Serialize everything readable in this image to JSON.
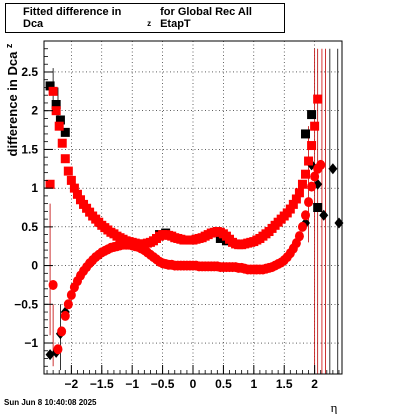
{
  "title": {
    "main": "Fitted difference in Dca",
    "subscript": "z",
    "suffix": "for Global Rec All EtapT"
  },
  "footer": {
    "timestamp": "Sun Jun  8 10:40:08 2025"
  },
  "colors": {
    "series_black": "#000000",
    "series_red": "#ff0000",
    "grid": "#000000",
    "frame": "#000000"
  },
  "chart_data": {
    "type": "scatter",
    "xlabel": "η",
    "ylabel": "difference in Dca",
    "ylabel_subscript": "z",
    "xlim": [
      -2.45,
      2.45
    ],
    "ylim": [
      -1.4,
      2.9
    ],
    "xticks": [
      -2,
      -1.5,
      -1,
      -0.5,
      0,
      0.5,
      1,
      1.5,
      2
    ],
    "xtick_labels": [
      "−2",
      "−1.5",
      "−1",
      "−0.5",
      "0",
      "0.5",
      "1",
      "1.5",
      "2"
    ],
    "yticks": [
      -1,
      -0.5,
      0,
      0.5,
      1,
      1.5,
      2,
      2.5
    ],
    "ytick_labels": [
      "−1",
      "−0.5",
      "0",
      "0.5",
      "1",
      "1.5",
      "2",
      "2.5"
    ],
    "grid": true,
    "series": [
      {
        "marker": "square",
        "color": "#000000",
        "x": [
          -2.35,
          -2.25,
          -2.18,
          -2.1,
          -0.55,
          -0.45,
          0.45,
          0.55,
          1.85,
          1.95,
          2.05
        ],
        "y": [
          2.32,
          2.08,
          1.88,
          1.72,
          0.4,
          0.42,
          0.35,
          0.32,
          1.7,
          1.95,
          0.75
        ]
      },
      {
        "marker": "diamond",
        "color": "#000000",
        "x": [
          -2.35,
          -2.25,
          -2.18,
          -2.1,
          1.85,
          1.95,
          2.05,
          2.15,
          2.3,
          2.4
        ],
        "y": [
          -1.15,
          -1.12,
          -0.88,
          -0.6,
          0.55,
          1.3,
          1.05,
          0.65,
          1.25,
          0.55
        ]
      },
      {
        "marker": "square",
        "color": "#ff0000",
        "x": [
          -2.35,
          -2.3,
          -2.25,
          -2.2,
          -2.15,
          -2.1,
          -2.05,
          -2.0,
          -1.95,
          -1.9,
          -1.85,
          -1.8,
          -1.75,
          -1.7,
          -1.65,
          -1.6,
          -1.55,
          -1.5,
          -1.45,
          -1.4,
          -1.35,
          -1.3,
          -1.25,
          -1.2,
          -1.15,
          -1.1,
          -1.05,
          -1.0,
          -0.95,
          -0.9,
          -0.85,
          -0.8,
          -0.75,
          -0.7,
          -0.65,
          -0.6,
          -0.55,
          -0.5,
          -0.45,
          -0.4,
          -0.35,
          -0.3,
          -0.25,
          -0.2,
          -0.15,
          -0.1,
          -0.05,
          0.0,
          0.05,
          0.1,
          0.15,
          0.2,
          0.25,
          0.3,
          0.35,
          0.4,
          0.45,
          0.5,
          0.55,
          0.6,
          0.65,
          0.7,
          0.75,
          0.8,
          0.85,
          0.9,
          0.95,
          1.0,
          1.05,
          1.1,
          1.15,
          1.2,
          1.25,
          1.3,
          1.35,
          1.4,
          1.45,
          1.5,
          1.55,
          1.6,
          1.65,
          1.7,
          1.75,
          1.8,
          1.85,
          1.9,
          1.95,
          2.0,
          2.05
        ],
        "y": [
          1.05,
          2.25,
          2.0,
          1.8,
          1.58,
          1.38,
          1.22,
          1.1,
          1.0,
          0.92,
          0.85,
          0.79,
          0.74,
          0.69,
          0.64,
          0.6,
          0.56,
          0.52,
          0.49,
          0.46,
          0.43,
          0.41,
          0.38,
          0.36,
          0.34,
          0.32,
          0.31,
          0.3,
          0.29,
          0.28,
          0.28,
          0.28,
          0.29,
          0.3,
          0.32,
          0.35,
          0.38,
          0.4,
          0.4,
          0.39,
          0.38,
          0.36,
          0.35,
          0.34,
          0.33,
          0.33,
          0.33,
          0.33,
          0.34,
          0.35,
          0.36,
          0.38,
          0.4,
          0.42,
          0.43,
          0.44,
          0.43,
          0.41,
          0.38,
          0.34,
          0.3,
          0.28,
          0.27,
          0.27,
          0.28,
          0.29,
          0.3,
          0.31,
          0.33,
          0.35,
          0.38,
          0.41,
          0.44,
          0.48,
          0.52,
          0.56,
          0.6,
          0.64,
          0.68,
          0.73,
          0.79,
          0.86,
          0.94,
          1.05,
          1.18,
          1.35,
          1.55,
          1.8,
          2.15
        ]
      },
      {
        "marker": "circle",
        "color": "#ff0000",
        "x": [
          -2.3,
          -2.22,
          -2.16,
          -2.1,
          -2.05,
          -2.0,
          -1.95,
          -1.9,
          -1.85,
          -1.8,
          -1.75,
          -1.7,
          -1.65,
          -1.6,
          -1.55,
          -1.5,
          -1.45,
          -1.4,
          -1.35,
          -1.3,
          -1.25,
          -1.2,
          -1.15,
          -1.1,
          -1.05,
          -1.0,
          -0.95,
          -0.9,
          -0.85,
          -0.8,
          -0.75,
          -0.7,
          -0.65,
          -0.6,
          -0.55,
          -0.5,
          -0.45,
          -0.4,
          -0.35,
          -0.3,
          -0.25,
          -0.2,
          -0.15,
          -0.1,
          -0.05,
          0.0,
          0.05,
          0.1,
          0.15,
          0.2,
          0.25,
          0.3,
          0.35,
          0.4,
          0.45,
          0.5,
          0.55,
          0.6,
          0.65,
          0.7,
          0.75,
          0.8,
          0.85,
          0.9,
          0.95,
          1.0,
          1.05,
          1.1,
          1.15,
          1.2,
          1.25,
          1.3,
          1.35,
          1.4,
          1.45,
          1.5,
          1.55,
          1.6,
          1.65,
          1.7,
          1.75,
          1.8,
          1.85,
          1.9,
          1.95,
          2.0,
          2.05,
          2.1
        ],
        "y": [
          -0.25,
          -1.08,
          -0.85,
          -0.65,
          -0.5,
          -0.38,
          -0.28,
          -0.2,
          -0.13,
          -0.07,
          -0.02,
          0.03,
          0.07,
          0.11,
          0.14,
          0.17,
          0.19,
          0.21,
          0.23,
          0.24,
          0.25,
          0.26,
          0.27,
          0.27,
          0.27,
          0.26,
          0.25,
          0.24,
          0.22,
          0.2,
          0.17,
          0.14,
          0.11,
          0.08,
          0.05,
          0.03,
          0.02,
          0.01,
          0.01,
          0.0,
          0.0,
          0.0,
          0.0,
          0.0,
          0.0,
          0.0,
          0.0,
          -0.01,
          -0.01,
          -0.01,
          -0.01,
          -0.01,
          -0.01,
          -0.01,
          -0.02,
          -0.02,
          -0.02,
          -0.02,
          -0.02,
          -0.02,
          -0.03,
          -0.03,
          -0.04,
          -0.05,
          -0.05,
          -0.05,
          -0.05,
          -0.05,
          -0.05,
          -0.04,
          -0.03,
          -0.02,
          0.0,
          0.02,
          0.04,
          0.07,
          0.11,
          0.16,
          0.22,
          0.29,
          0.38,
          0.5,
          0.65,
          0.82,
          1.02,
          1.15,
          1.25,
          1.3
        ]
      }
    ]
  }
}
